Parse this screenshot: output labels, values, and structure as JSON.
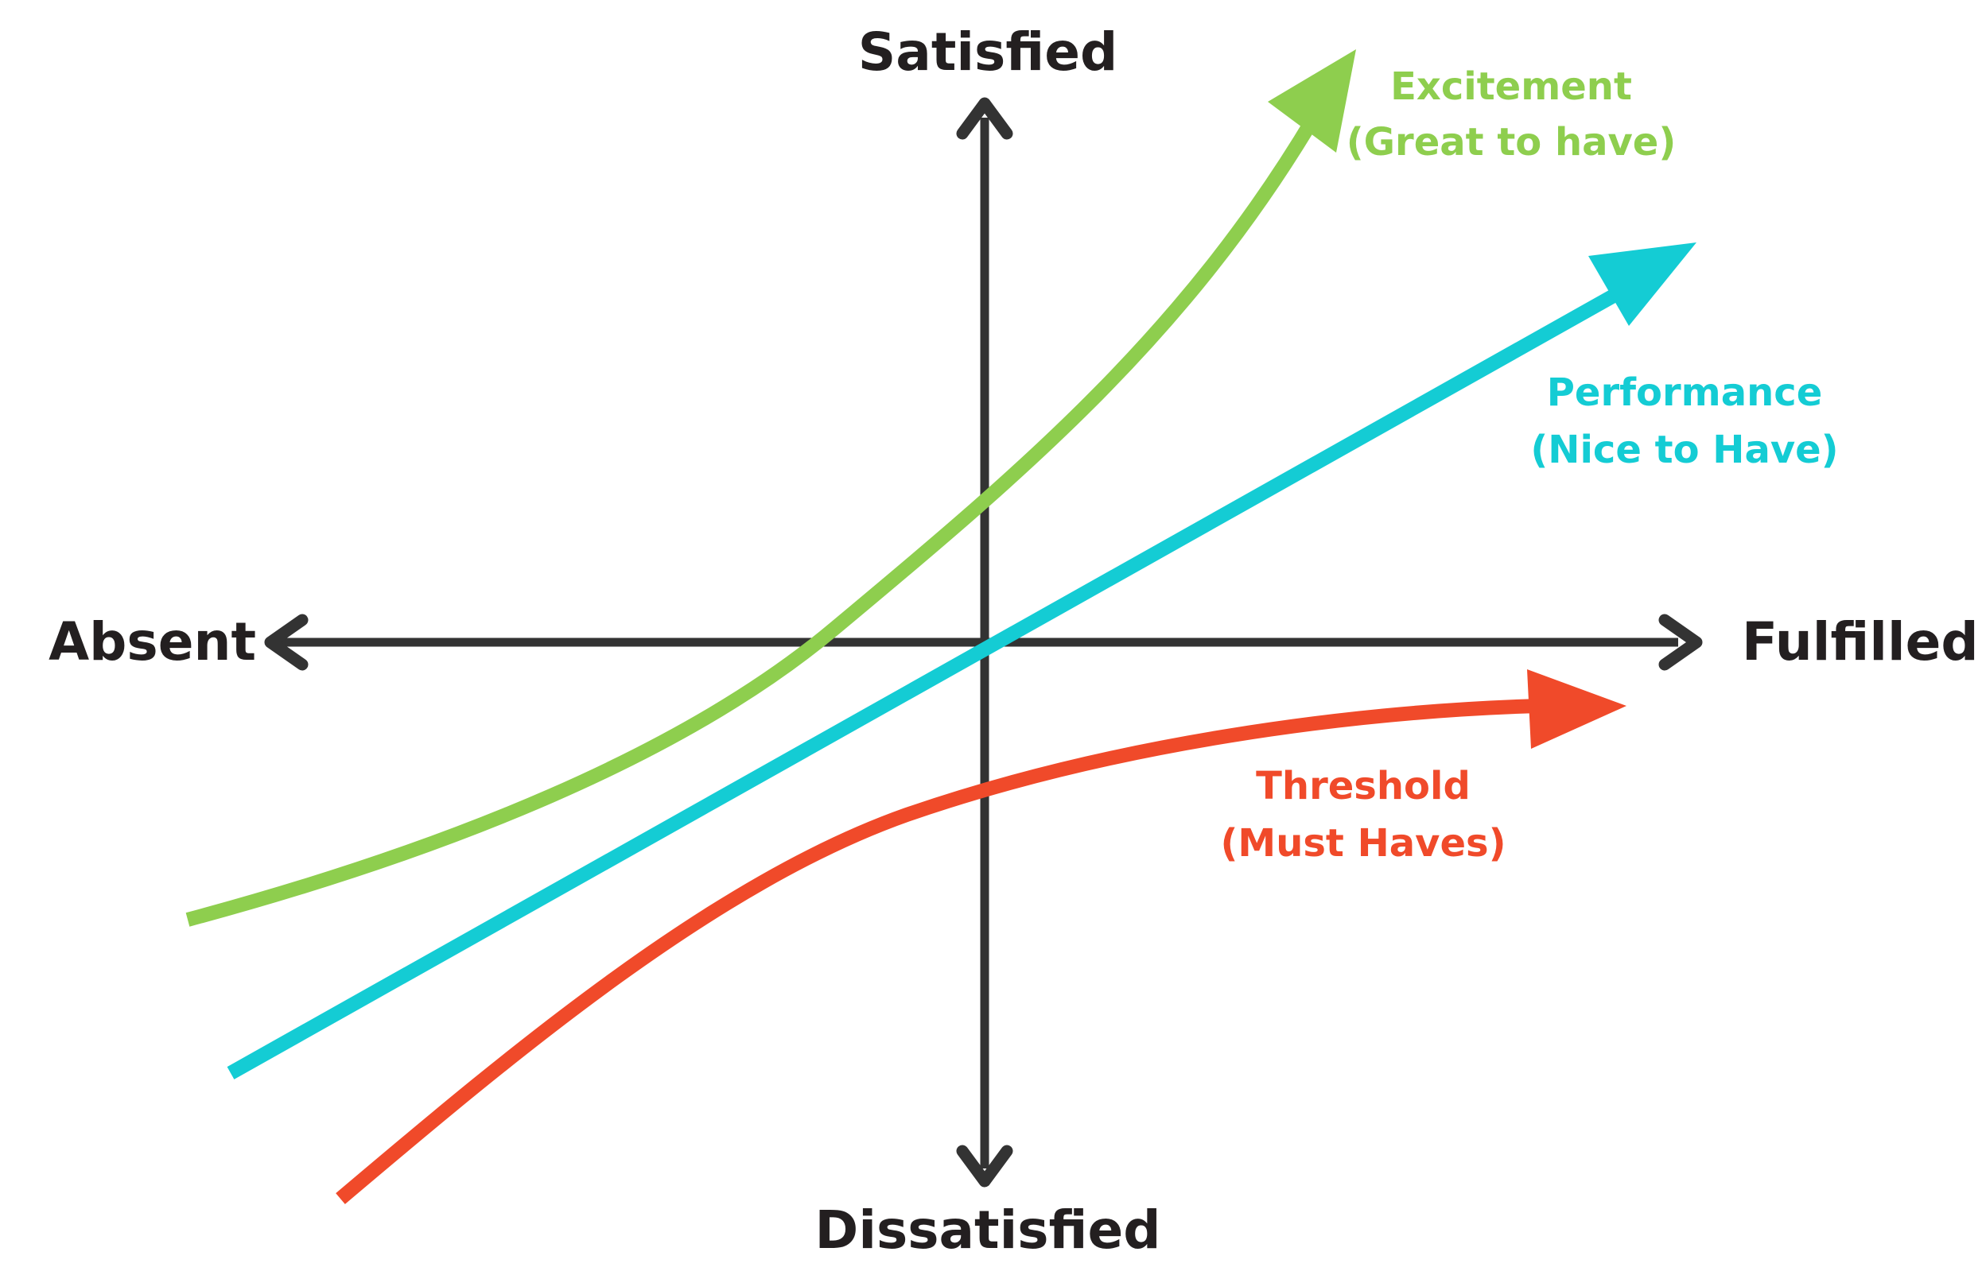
{
  "axes": {
    "top_label": "Satisfied",
    "bottom_label": "Dissatisfied",
    "left_label": "Absent",
    "right_label": "Fulfilled",
    "color": "#333333"
  },
  "curves": {
    "excitement": {
      "line1": "Excitement",
      "line2": "(Great to have)",
      "color": "#8ece4e"
    },
    "performance": {
      "line1": "Performance",
      "line2": "(Nice to Have)",
      "color": "#14ccd4"
    },
    "threshold": {
      "line1": "Threshold",
      "line2": "(Must Haves)",
      "color": "#f04a2a"
    }
  }
}
